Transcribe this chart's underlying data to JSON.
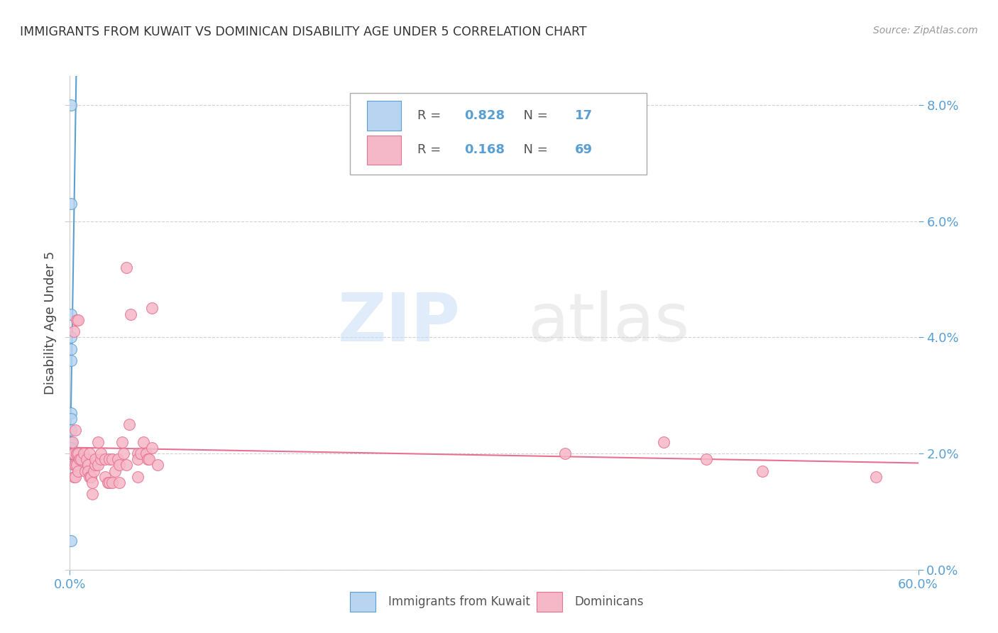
{
  "title": "IMMIGRANTS FROM KUWAIT VS DOMINICAN DISABILITY AGE UNDER 5 CORRELATION CHART",
  "source": "Source: ZipAtlas.com",
  "ylabel": "Disability Age Under 5",
  "watermark_zip": "ZIP",
  "watermark_atlas": "atlas",
  "kuwait_R": 0.828,
  "kuwait_N": 17,
  "dominican_R": 0.168,
  "dominican_N": 69,
  "kuwait_color": "#b8d4f0",
  "dominican_color": "#f5b8c8",
  "kuwait_edge_color": "#5a9fd4",
  "dominican_edge_color": "#e87090",
  "kuwait_line_color": "#5a9fd4",
  "dominican_line_color": "#e87090",
  "right_axis_color": "#5a9fd4",
  "xmin": 0.0,
  "xmax": 0.6,
  "ymin": 0.0,
  "ymax": 0.085,
  "yticks": [
    0.0,
    0.02,
    0.04,
    0.06,
    0.08
  ],
  "ytick_labels": [
    "0.0%",
    "2.0%",
    "4.0%",
    "6.0%",
    "8.0%"
  ],
  "xtick_positions": [
    0.0,
    0.6
  ],
  "xtick_labels": [
    "0.0%",
    "60.0%"
  ],
  "kuwait_scatter_x": [
    0.001,
    0.001,
    0.001,
    0.001,
    0.001,
    0.001,
    0.001,
    0.001,
    0.001,
    0.001,
    0.001,
    0.001,
    0.001,
    0.001,
    0.001,
    0.001,
    0.001
  ],
  "kuwait_scatter_y": [
    0.08,
    0.063,
    0.044,
    0.04,
    0.038,
    0.036,
    0.027,
    0.026,
    0.024,
    0.022,
    0.021,
    0.021,
    0.02,
    0.02,
    0.02,
    0.02,
    0.005
  ],
  "dominican_scatter_x": [
    0.002,
    0.002,
    0.003,
    0.003,
    0.003,
    0.003,
    0.004,
    0.004,
    0.004,
    0.005,
    0.005,
    0.005,
    0.005,
    0.006,
    0.006,
    0.006,
    0.007,
    0.008,
    0.01,
    0.011,
    0.012,
    0.013,
    0.013,
    0.014,
    0.014,
    0.015,
    0.015,
    0.016,
    0.016,
    0.017,
    0.018,
    0.018,
    0.02,
    0.02,
    0.022,
    0.022,
    0.025,
    0.025,
    0.027,
    0.028,
    0.028,
    0.03,
    0.03,
    0.032,
    0.034,
    0.035,
    0.035,
    0.037,
    0.038,
    0.04,
    0.04,
    0.042,
    0.043,
    0.048,
    0.048,
    0.048,
    0.05,
    0.052,
    0.054,
    0.055,
    0.056,
    0.058,
    0.058,
    0.062,
    0.35,
    0.42,
    0.45,
    0.49,
    0.57
  ],
  "dominican_scatter_y": [
    0.02,
    0.022,
    0.016,
    0.018,
    0.02,
    0.041,
    0.016,
    0.018,
    0.024,
    0.018,
    0.02,
    0.02,
    0.043,
    0.017,
    0.02,
    0.043,
    0.019,
    0.019,
    0.02,
    0.017,
    0.019,
    0.018,
    0.017,
    0.016,
    0.02,
    0.016,
    0.016,
    0.013,
    0.015,
    0.017,
    0.018,
    0.019,
    0.018,
    0.022,
    0.019,
    0.02,
    0.016,
    0.019,
    0.015,
    0.015,
    0.019,
    0.015,
    0.019,
    0.017,
    0.019,
    0.015,
    0.018,
    0.022,
    0.02,
    0.018,
    0.052,
    0.025,
    0.044,
    0.016,
    0.02,
    0.019,
    0.02,
    0.022,
    0.02,
    0.019,
    0.019,
    0.021,
    0.045,
    0.018,
    0.02,
    0.022,
    0.019,
    0.017,
    0.016
  ],
  "background_color": "#ffffff",
  "grid_color": "#cccccc",
  "spine_color": "#cccccc",
  "title_color": "#333333",
  "source_color": "#999999",
  "label_color": "#444444",
  "tick_color": "#5a9fd4"
}
